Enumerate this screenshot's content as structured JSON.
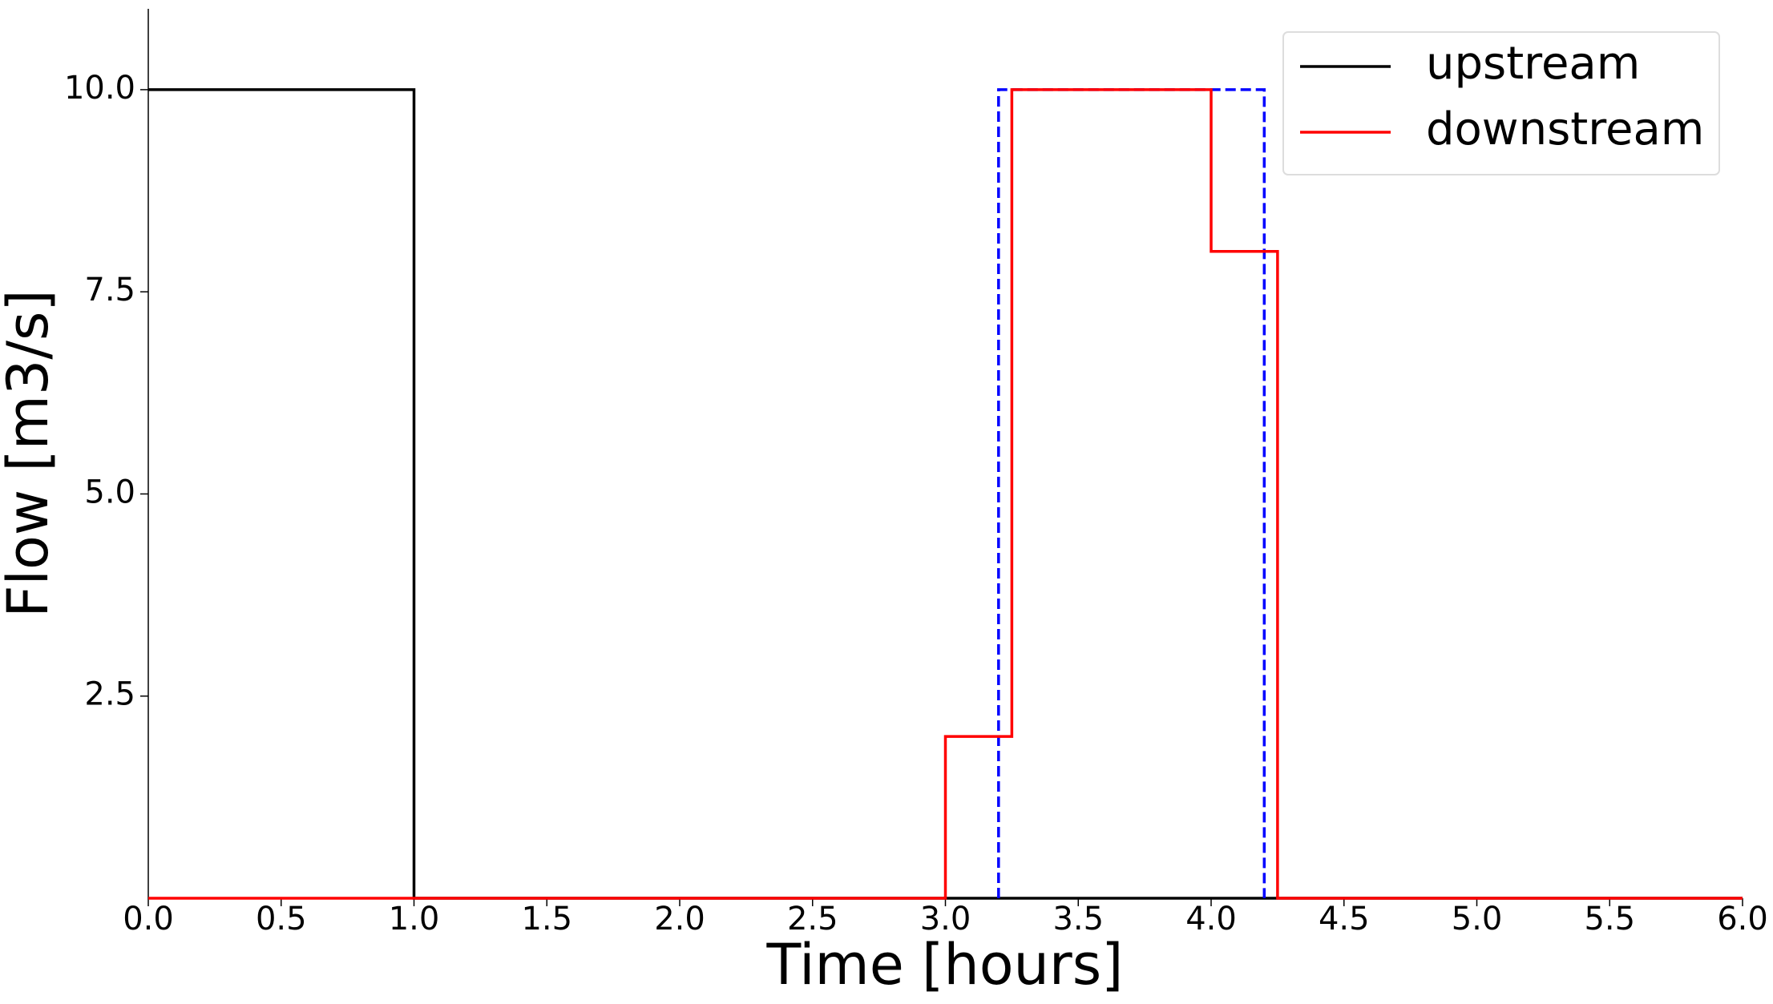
{
  "chart_data": {
    "type": "line",
    "xlabel": "Time [hours]",
    "ylabel": "Flow [m3/s]",
    "xlim": [
      0,
      6
    ],
    "ylim": [
      0,
      11
    ],
    "xticks": [
      {
        "value": 0,
        "label": "0.0"
      },
      {
        "value": 0.5,
        "label": "0.5"
      },
      {
        "value": 1,
        "label": "1.0"
      },
      {
        "value": 1.5,
        "label": "1.5"
      },
      {
        "value": 2,
        "label": "2.0"
      },
      {
        "value": 2.5,
        "label": "2.5"
      },
      {
        "value": 3,
        "label": "3.0"
      },
      {
        "value": 3.5,
        "label": "3.5"
      },
      {
        "value": 4,
        "label": "4.0"
      },
      {
        "value": 4.5,
        "label": "4.5"
      },
      {
        "value": 5,
        "label": "5.0"
      },
      {
        "value": 5.5,
        "label": "5.5"
      },
      {
        "value": 6,
        "label": "6.0"
      }
    ],
    "yticks": [
      2.5,
      {
        "value": 5,
        "label": "5.0"
      },
      7.5,
      {
        "value": 10,
        "label": "10.0"
      }
    ],
    "legend": "upper right",
    "series": [
      {
        "name": "upstream",
        "color": "#000000",
        "linestyle": "solid",
        "x": [
          0,
          1,
          1,
          6
        ],
        "values": [
          10,
          10,
          0,
          0
        ]
      },
      {
        "color": "#0000ff",
        "linestyle": "dashed",
        "x": [
          3.2,
          3.2,
          4.2,
          4.2
        ],
        "values": [
          0,
          10,
          10,
          0
        ]
      },
      {
        "name": "downstream",
        "color": "#ff0000",
        "linestyle": "solid",
        "x": [
          0,
          3,
          3,
          3.25,
          3.25,
          4,
          4,
          4.25,
          4.25,
          6
        ],
        "values": [
          0,
          0,
          2,
          2,
          10,
          10,
          8,
          8,
          0,
          0
        ]
      }
    ]
  }
}
